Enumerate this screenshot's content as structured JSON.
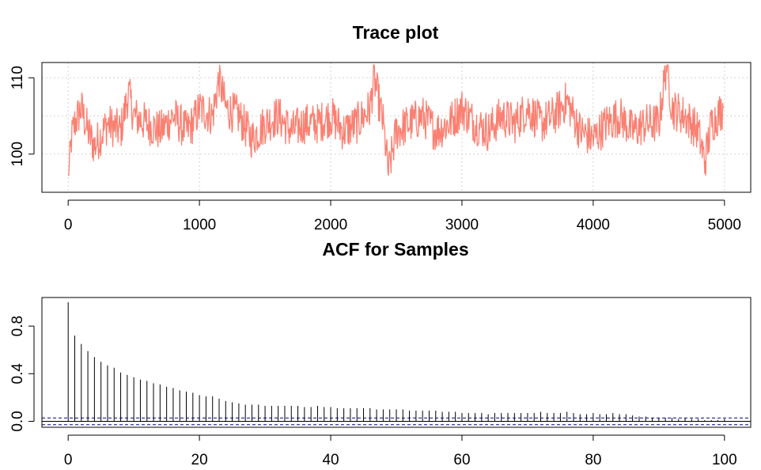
{
  "chart_data": [
    {
      "type": "line",
      "title": "Trace plot",
      "xlabel": "",
      "ylabel": "",
      "xlim": [
        0,
        5000
      ],
      "ylim": [
        95,
        112
      ],
      "x_ticks": [
        0,
        1000,
        2000,
        3000,
        4000,
        5000
      ],
      "y_ticks": [
        100,
        110
      ],
      "grid": true,
      "line_color": "#FA8072",
      "series": [
        {
          "x": [
            0,
            25,
            50,
            100,
            150,
            200,
            300,
            400,
            460,
            500,
            600,
            700,
            800,
            900,
            950,
            1000,
            1100,
            1150,
            1200,
            1300,
            1400,
            1500,
            1600,
            1700,
            1800,
            1900,
            2000,
            2100,
            2200,
            2300,
            2330,
            2400,
            2440,
            2500,
            2600,
            2700,
            2800,
            2900,
            3000,
            3100,
            3200,
            3300,
            3400,
            3500,
            3600,
            3700,
            3800,
            3900,
            4000,
            4100,
            4200,
            4300,
            4400,
            4500,
            4560,
            4600,
            4700,
            4800,
            4850,
            4900,
            4990
          ],
          "values": [
            96,
            102,
            104,
            106,
            103,
            101,
            104,
            103,
            108,
            105,
            104,
            103,
            105,
            103,
            104,
            106,
            105,
            110,
            106,
            105,
            102,
            104,
            105,
            103,
            104,
            104,
            105,
            103,
            104,
            106,
            110,
            104,
            97.5,
            103,
            104,
            105,
            103,
            104,
            106,
            104,
            103,
            105,
            104,
            106,
            104,
            105,
            107,
            103,
            102,
            104,
            105,
            103,
            104,
            104,
            112,
            106,
            105,
            103,
            99,
            104,
            106
          ]
        }
      ]
    },
    {
      "type": "bar",
      "title": "ACF for Samples",
      "xlabel": "",
      "ylabel": "",
      "xlim": [
        0,
        100
      ],
      "ylim": [
        -0.05,
        1
      ],
      "x_ticks": [
        0,
        20,
        40,
        60,
        80,
        100
      ],
      "y_ticks": [
        0.0,
        0.4,
        0.8
      ],
      "y_tick_labels": [
        "0.0",
        "0.4",
        "0.8"
      ],
      "confidence_bound": 0.028,
      "confidence_color": "#00008B",
      "lags": [
        0,
        1,
        2,
        3,
        4,
        5,
        6,
        7,
        8,
        9,
        10,
        11,
        12,
        13,
        14,
        15,
        16,
        17,
        18,
        19,
        20,
        21,
        22,
        23,
        24,
        25,
        26,
        27,
        28,
        29,
        30,
        31,
        32,
        33,
        34,
        35,
        36,
        37,
        38,
        39,
        40,
        41,
        42,
        43,
        44,
        45,
        46,
        47,
        48,
        49,
        50,
        51,
        52,
        53,
        54,
        55,
        56,
        57,
        58,
        59,
        60,
        61,
        62,
        63,
        64,
        65,
        66,
        67,
        68,
        69,
        70,
        71,
        72,
        73,
        74,
        75,
        76,
        77,
        78,
        79,
        80,
        81,
        82,
        83,
        84,
        85,
        86,
        87,
        88,
        89,
        90,
        91,
        92,
        93,
        94,
        95,
        96,
        97,
        98,
        99,
        100
      ],
      "values": [
        1.0,
        0.72,
        0.65,
        0.59,
        0.54,
        0.5,
        0.47,
        0.45,
        0.41,
        0.39,
        0.37,
        0.35,
        0.34,
        0.32,
        0.31,
        0.29,
        0.28,
        0.26,
        0.25,
        0.24,
        0.22,
        0.21,
        0.21,
        0.19,
        0.17,
        0.16,
        0.15,
        0.14,
        0.14,
        0.14,
        0.13,
        0.13,
        0.13,
        0.13,
        0.13,
        0.13,
        0.12,
        0.12,
        0.13,
        0.12,
        0.12,
        0.11,
        0.11,
        0.11,
        0.11,
        0.11,
        0.11,
        0.1,
        0.1,
        0.1,
        0.1,
        0.1,
        0.09,
        0.09,
        0.09,
        0.09,
        0.09,
        0.08,
        0.08,
        0.08,
        0.07,
        0.07,
        0.07,
        0.07,
        0.06,
        0.07,
        0.07,
        0.07,
        0.07,
        0.07,
        0.07,
        0.07,
        0.08,
        0.07,
        0.07,
        0.07,
        0.08,
        0.07,
        0.06,
        0.06,
        0.07,
        0.06,
        0.06,
        0.07,
        0.06,
        0.06,
        0.05,
        0.04,
        0.04,
        0.03,
        0.03,
        0.03,
        0.03,
        0.02,
        0.03,
        0.02,
        0.02,
        0.01,
        0.01,
        0.01,
        0.02
      ]
    }
  ]
}
